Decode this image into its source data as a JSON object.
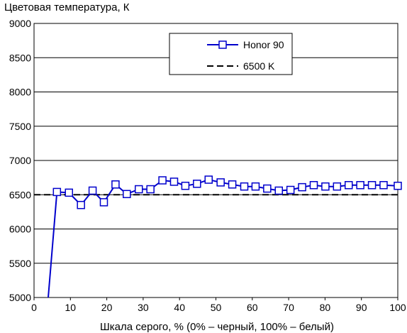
{
  "chart_data": {
    "type": "line",
    "title": "",
    "ylabel": "Цветовая температура, К",
    "xlabel": "Шкала серого, % (0% – черный, 100% – белый)",
    "xlim": [
      0,
      100
    ],
    "ylim": [
      5000,
      9000
    ],
    "x_ticks": [
      0,
      10,
      20,
      30,
      40,
      50,
      60,
      70,
      80,
      90,
      100
    ],
    "y_ticks": [
      5000,
      5500,
      6000,
      6500,
      7000,
      7500,
      8000,
      8500,
      9000
    ],
    "grid": "horizontal",
    "legend_position": "top-right",
    "series": [
      {
        "name": "Honor 90",
        "color": "#0000cc",
        "marker": "square",
        "x": [
          3.9,
          6.3,
          9.6,
          12.9,
          16.1,
          19.2,
          22.4,
          25.5,
          28.8,
          32.0,
          35.3,
          38.5,
          41.6,
          44.8,
          48.0,
          51.3,
          54.5,
          57.8,
          60.9,
          64.1,
          67.3,
          70.5,
          73.7,
          76.9,
          80.1,
          83.3,
          86.5,
          89.7,
          92.9,
          96.1,
          100
        ],
        "y": [
          5000,
          6540,
          6530,
          6350,
          6560,
          6390,
          6650,
          6510,
          6580,
          6580,
          6710,
          6690,
          6630,
          6660,
          6720,
          6680,
          6650,
          6620,
          6620,
          6590,
          6560,
          6570,
          6610,
          6640,
          6620,
          6620,
          6640,
          6640,
          6640,
          6640,
          6630
        ],
        "first_point_marker": false
      },
      {
        "name": "6500 K",
        "color": "#000000",
        "dash": "dashed",
        "x": [
          0,
          100
        ],
        "y": [
          6500,
          6500
        ]
      }
    ]
  }
}
